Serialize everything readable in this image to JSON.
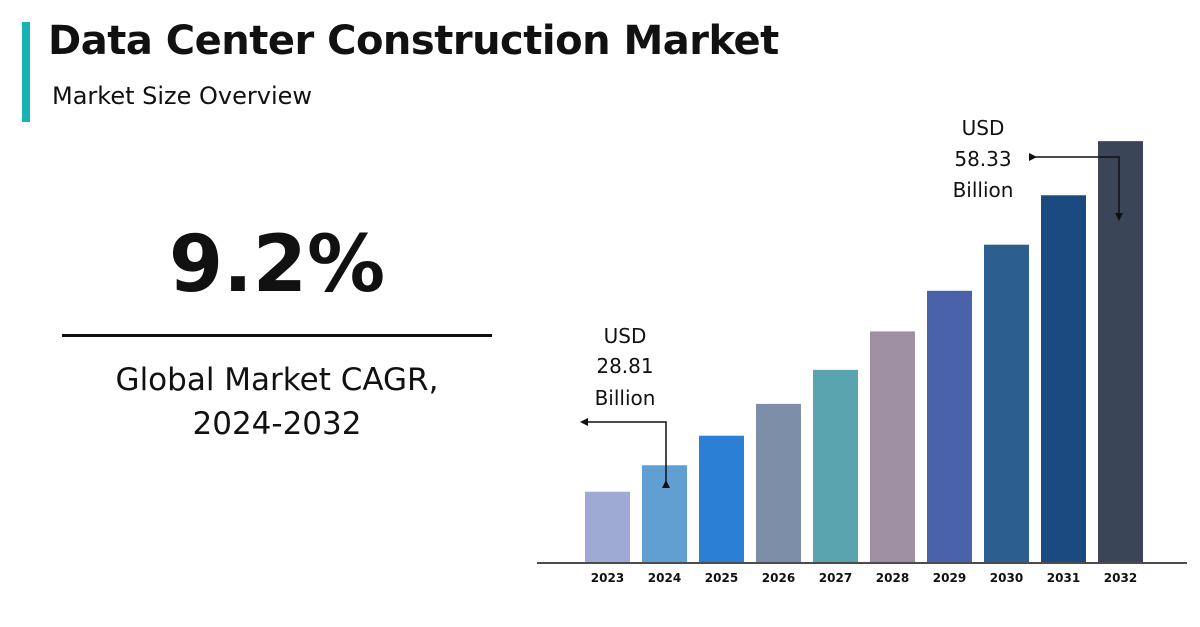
{
  "header": {
    "title": "Data Center Construction Market",
    "subtitle": "Market Size Overview"
  },
  "summary": {
    "cagr_value": "9.2%",
    "cagr_label_line1": "Global Market CAGR,",
    "cagr_label_line2": "2024-2032"
  },
  "colors": {
    "accent": "#17b3b0",
    "axis": "#111111"
  },
  "callouts": {
    "start": {
      "line1": "USD",
      "line2": "28.81",
      "line3": "Billion"
    },
    "end": {
      "line1": "USD",
      "line2": "58.33",
      "line3": "Billion"
    }
  },
  "chart_data": {
    "type": "bar",
    "title": "",
    "xlabel": "",
    "ylabel": "",
    "categories": [
      "2023",
      "2024",
      "2025",
      "2026",
      "2027",
      "2028",
      "2029",
      "2030",
      "2031",
      "2032"
    ],
    "values": [
      26.4,
      28.81,
      31.5,
      34.4,
      37.5,
      41.0,
      44.7,
      48.9,
      53.4,
      58.33
    ],
    "unit": "USD Billion",
    "ylim": [
      20,
      58.33
    ],
    "grid": false,
    "legend": "none",
    "bar_colors": [
      "#9eaad3",
      "#619fd3",
      "#2b80d6",
      "#7d8ea8",
      "#59a4ae",
      "#9e8fa2",
      "#4962a9",
      "#2c5f90",
      "#1b4a80",
      "#3a4557"
    ]
  }
}
